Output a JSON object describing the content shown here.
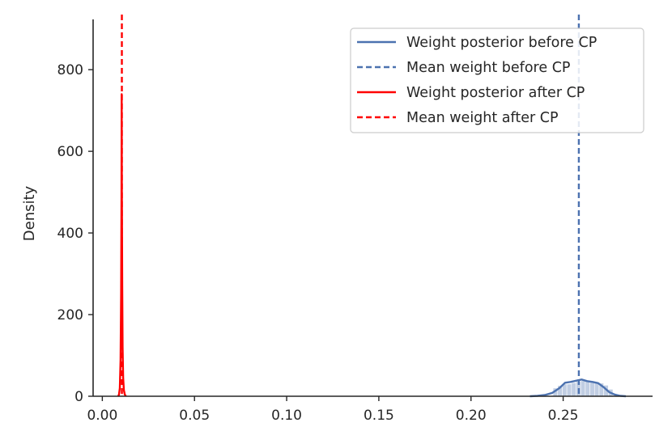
{
  "chart_data": {
    "type": "area",
    "title": "",
    "xlabel": "",
    "ylabel": "Density",
    "xlim": [
      -0.005,
      0.2985
    ],
    "ylim": [
      0,
      935
    ],
    "grid": false,
    "legend_position": "top-right",
    "x_ticks": [
      "0.00",
      "0.05",
      "0.10",
      "0.15",
      "0.20",
      "0.25"
    ],
    "x_tick_values": [
      0.0,
      0.05,
      0.1,
      0.15,
      0.2,
      0.25
    ],
    "y_ticks": [
      "0",
      "200",
      "400",
      "600",
      "800"
    ],
    "y_tick_values": [
      0,
      200,
      400,
      600,
      800
    ],
    "series": [
      {
        "name": "Weight posterior before CP",
        "color": "#4c72b0",
        "style": "solid",
        "kde": {
          "x": [
            0.232,
            0.236,
            0.24,
            0.244,
            0.248,
            0.251,
            0.254,
            0.257,
            0.26,
            0.263,
            0.266,
            0.269,
            0.272,
            0.275,
            0.278,
            0.281,
            0.284
          ],
          "y": [
            0,
            1,
            3,
            8,
            20,
            33,
            35,
            38,
            41,
            37,
            35,
            32,
            22,
            10,
            4,
            1,
            0
          ]
        },
        "histogram": {
          "bin_edges": [
            0.2445,
            0.247,
            0.2495,
            0.252,
            0.2545,
            0.257,
            0.2595,
            0.262,
            0.2645,
            0.267,
            0.2695,
            0.272,
            0.2745,
            0.277
          ],
          "values": [
            20,
            26,
            30,
            30,
            33,
            36,
            38,
            36,
            34,
            33,
            32,
            27,
            17
          ]
        }
      },
      {
        "name": "Mean weight before CP",
        "color": "#4c72b0",
        "style": "dashed",
        "vline_x": 0.2585
      },
      {
        "name": "Weight posterior after CP",
        "color": "#ff0000",
        "style": "solid",
        "kde": {
          "x": [
            0.0085,
            0.009,
            0.0095,
            0.0099,
            0.0102,
            0.0104,
            0.0105,
            0.0106,
            0.0108,
            0.011,
            0.0113,
            0.0117,
            0.0122,
            0.0128
          ],
          "y": [
            0,
            3,
            20,
            90,
            250,
            480,
            740,
            500,
            270,
            120,
            45,
            15,
            4,
            0
          ]
        },
        "histogram": {
          "bin_edges": [
            0.0098,
            0.01,
            0.0102,
            0.0104,
            0.0106,
            0.0108,
            0.011,
            0.0112
          ],
          "values": [
            60,
            200,
            500,
            720,
            480,
            230,
            70
          ]
        }
      },
      {
        "name": "Mean weight after CP",
        "color": "#ff0000",
        "style": "dashed",
        "vline_x": 0.0106
      }
    ]
  }
}
